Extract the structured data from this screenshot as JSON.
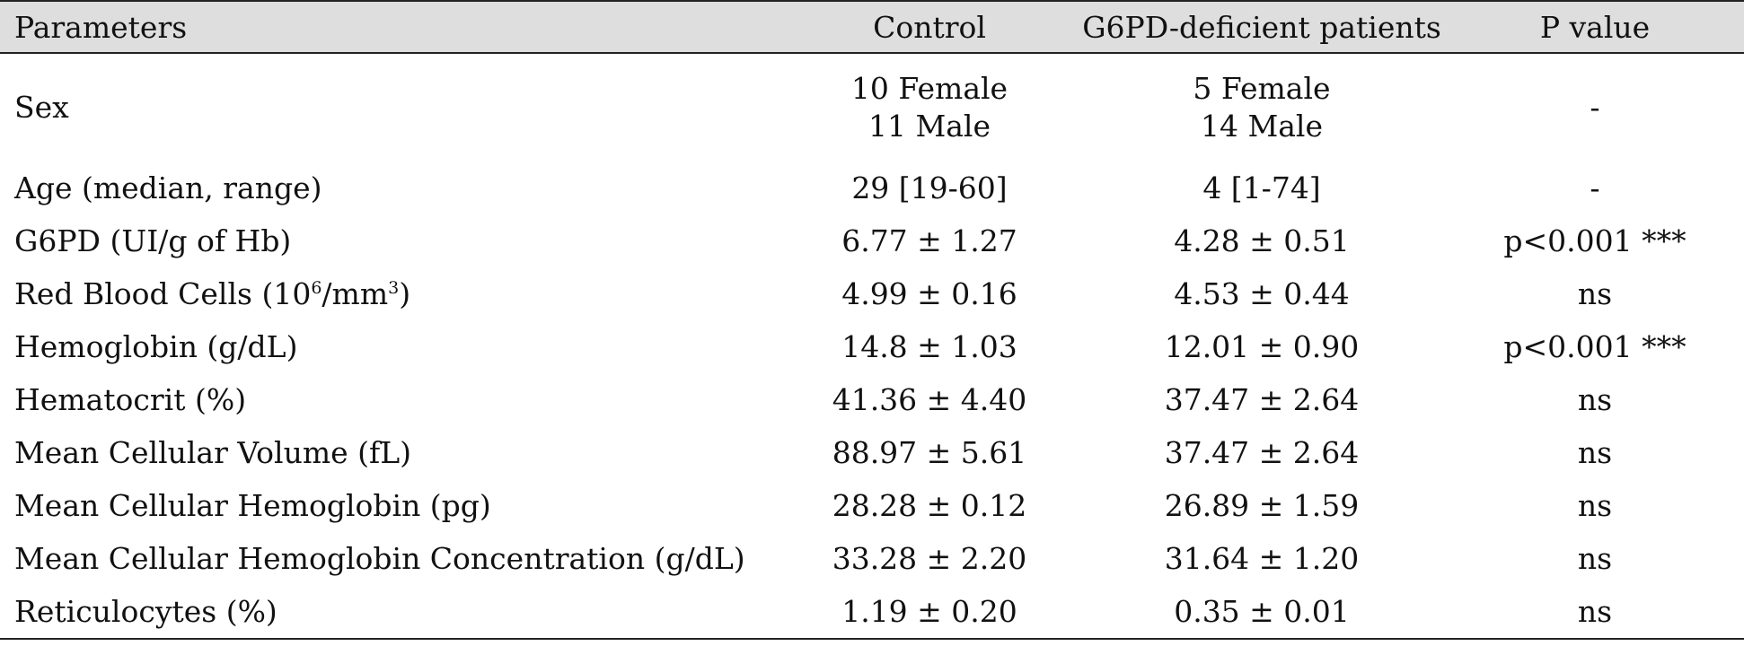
{
  "table": {
    "headers": [
      "Parameters",
      "Control",
      "G6PD-deficient patients",
      "P value"
    ],
    "sex_row": {
      "parameter": "Sex",
      "control": [
        "10 Female",
        "11 Male"
      ],
      "patients": [
        "5 Female",
        "14 Male"
      ],
      "p_value": "-"
    },
    "rows": [
      {
        "parameter": "Age (median, range)",
        "control": "29 [19-60]",
        "patients": "4 [1-74]",
        "p_value": "-"
      },
      {
        "parameter": "G6PD (UI/g of Hb)",
        "control": "6.77 ± 1.27",
        "patients": "4.28 ± 0.51",
        "p_value": "p<0.001 ***"
      },
      {
        "parameter_prefix": "Red Blood Cells (10",
        "parameter_sup1": "6",
        "parameter_mid": "/mm",
        "parameter_sup2": "3",
        "parameter_suffix": ")",
        "control": "4.99 ± 0.16",
        "patients": "4.53 ± 0.44",
        "p_value": "ns"
      },
      {
        "parameter": "Hemoglobin (g/dL)",
        "control": "14.8 ± 1.03",
        "patients": "12.01 ± 0.90",
        "p_value": "p<0.001 ***"
      },
      {
        "parameter": "Hematocrit (%)",
        "control": "41.36 ± 4.40",
        "patients": "37.47 ± 2.64",
        "p_value": "ns"
      },
      {
        "parameter": "Mean Cellular Volume (fL)",
        "control": "88.97 ± 5.61",
        "patients": "37.47 ± 2.64",
        "p_value": "ns"
      },
      {
        "parameter": "Mean Cellular Hemoglobin (pg)",
        "control": "28.28 ± 0.12",
        "patients": "26.89 ± 1.59",
        "p_value": "ns"
      },
      {
        "parameter": "Mean Cellular Hemoglobin Concentration (g/dL)",
        "control": "33.28 ± 2.20",
        "patients": "31.64 ± 1.20",
        "p_value": "ns"
      },
      {
        "parameter": "Reticulocytes (%)",
        "control": "1.19 ± 0.20",
        "patients": "0.35 ± 0.01",
        "p_value": "ns"
      }
    ]
  },
  "colors": {
    "header_background": "#dedede",
    "rule": "#222222",
    "text": "#111111"
  }
}
